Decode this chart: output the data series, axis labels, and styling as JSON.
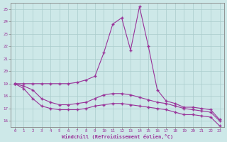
{
  "xlabel": "Windchill (Refroidissement éolien,°C)",
  "x": [
    0,
    1,
    2,
    3,
    4,
    5,
    6,
    7,
    8,
    9,
    10,
    11,
    12,
    13,
    14,
    15,
    16,
    17,
    18,
    19,
    20,
    21,
    22,
    23
  ],
  "line1": [
    19.0,
    19.0,
    19.0,
    19.0,
    19.0,
    19.0,
    19.0,
    19.1,
    19.3,
    19.6,
    21.5,
    23.8,
    24.3,
    21.7,
    25.2,
    22.0,
    18.5,
    17.6,
    17.4,
    17.1,
    17.1,
    17.0,
    16.9,
    16.1
  ],
  "line2": [
    19.0,
    18.8,
    18.5,
    17.8,
    17.5,
    17.3,
    17.3,
    17.4,
    17.5,
    17.8,
    18.1,
    18.2,
    18.2,
    18.1,
    17.9,
    17.7,
    17.5,
    17.4,
    17.2,
    17.0,
    16.9,
    16.8,
    16.7,
    16.0
  ],
  "line3": [
    19.0,
    18.6,
    17.8,
    17.2,
    17.0,
    16.9,
    16.9,
    16.9,
    17.0,
    17.2,
    17.3,
    17.4,
    17.4,
    17.3,
    17.2,
    17.1,
    17.0,
    16.9,
    16.7,
    16.5,
    16.5,
    16.4,
    16.3,
    15.6
  ],
  "ylim": [
    15.5,
    25.5
  ],
  "yticks": [
    16,
    17,
    18,
    19,
    20,
    21,
    22,
    23,
    24,
    25
  ],
  "bg_color": "#cde8e8",
  "line_color": "#993399",
  "grid_color": "#aacccc"
}
